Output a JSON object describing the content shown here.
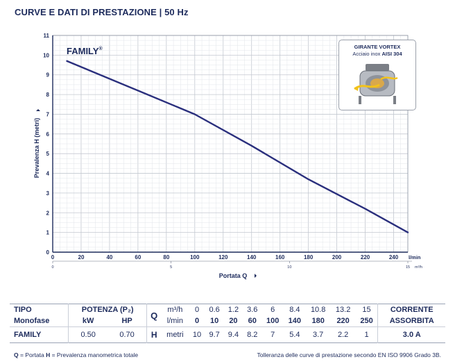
{
  "header": {
    "title": "CURVE E DATI DI PRESTAZIONE  | 50 Hz"
  },
  "chart_data": {
    "type": "line",
    "title": "FAMILY",
    "title_mark": "®",
    "xlabel": "Portata  Q",
    "xunit": "l/min",
    "x2unit": "m³/h",
    "ylabel": "Prevalenza  H  (metri)",
    "xlim": [
      0,
      250
    ],
    "ylim": [
      0,
      11
    ],
    "x_ticks": [
      "0",
      "20",
      "40",
      "60",
      "80",
      "100",
      "120",
      "140",
      "160",
      "180",
      "200",
      "220",
      "240"
    ],
    "x_tick_values": [
      0,
      20,
      40,
      60,
      80,
      100,
      120,
      140,
      160,
      180,
      200,
      220,
      240
    ],
    "x2_ticks": [
      "0",
      "5",
      "10",
      "15"
    ],
    "x2_tick_values": [
      0,
      5,
      10,
      15
    ],
    "y_ticks": [
      "0",
      "1",
      "2",
      "3",
      "4",
      "5",
      "6",
      "7",
      "8",
      "9",
      "10",
      "11"
    ],
    "grid": true,
    "series": [
      {
        "name": "FAMILY",
        "color": "#2a2f7d",
        "x": [
          10,
          20,
          60,
          100,
          140,
          180,
          220,
          250
        ],
        "y": [
          9.7,
          9.4,
          8.2,
          7.0,
          5.4,
          3.7,
          2.2,
          1.0
        ]
      }
    ]
  },
  "inset": {
    "title": "GIRANTE VORTEX",
    "subtitle_prefix": "Acciaio inox ",
    "subtitle_bold": "AISI 304"
  },
  "table": {
    "tipo_label": "TIPO",
    "monofase_label": "Monofase",
    "potenza_label": "POTENZA (P₂)",
    "kw_label": "kW",
    "hp_label": "HP",
    "q_label": "Q",
    "m3h_label": "m³/h",
    "lmin_label": "l/min",
    "h_label": "H",
    "metri_label": "metri",
    "m3h_values": [
      "0",
      "0.6",
      "1.2",
      "3.6",
      "6",
      "8.4",
      "10.8",
      "13.2",
      "15"
    ],
    "lmin_values": [
      "0",
      "10",
      "20",
      "60",
      "100",
      "140",
      "180",
      "220",
      "250"
    ],
    "corrente_label_1": "CORRENTE",
    "corrente_label_2": "ASSORBITA",
    "model": "FAMILY",
    "kw": "0.50",
    "hp": "0.70",
    "h_values": [
      "10",
      "9.7",
      "9.4",
      "8.2",
      "7",
      "5.4",
      "3.7",
      "2.2",
      "1"
    ],
    "current": "3.0 A"
  },
  "footer": {
    "q_key": "Q",
    "q_text": " = Portata   ",
    "h_key": "H",
    "h_text": " = Prevalenza manometrica totale",
    "tolerance": "Tolleranza delle curve di prestazione secondo EN ISO 9906 Grado 3B."
  }
}
